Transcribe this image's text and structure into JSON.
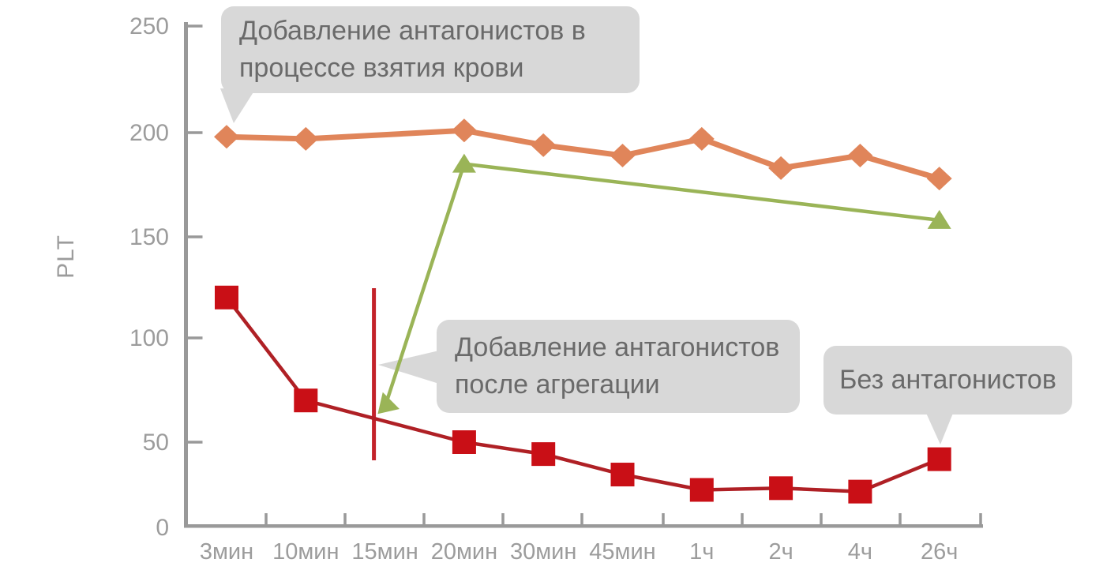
{
  "chart_data": {
    "type": "line",
    "title": "",
    "xlabel": "",
    "ylabel": "PLT",
    "categories": [
      "3мин",
      "10мин",
      "15мин",
      "20мин",
      "30мин",
      "45мин",
      "1ч",
      "2ч",
      "4ч",
      "26ч"
    ],
    "y_ticks": [
      0,
      50,
      100,
      150,
      200,
      250
    ],
    "ylim": [
      0,
      250
    ],
    "grid": false,
    "legend_position": "none",
    "series": [
      {
        "name": "Добавление антагонистов в процессе взятия крови",
        "marker": "diamond",
        "color": "#E0855A",
        "values": [
          198,
          197,
          null,
          201,
          194,
          189,
          197,
          183,
          189,
          178
        ]
      },
      {
        "name": "Добавление антагонистов после агрегации",
        "marker": "triangle",
        "color": "#9AB457",
        "values": [
          null,
          null,
          67,
          185,
          null,
          null,
          null,
          null,
          null,
          158
        ]
      },
      {
        "name": "Без антагонистов",
        "marker": "square",
        "color": "#C90F16",
        "line_color": "#AF2025",
        "values": [
          120,
          70,
          null,
          50,
          43,
          31,
          22,
          23,
          21,
          40
        ]
      }
    ],
    "annotation_line": {
      "category": "15мин",
      "color": "#C3222A"
    }
  },
  "callouts": [
    {
      "lines": [
        "Добавление антагонистов в",
        "процессе взятия крови"
      ]
    },
    {
      "lines": [
        "Добавление антагонистов",
        "после агрегации"
      ]
    },
    {
      "lines": [
        "Без антагонистов"
      ]
    }
  ],
  "colors": {
    "axis": "#999999",
    "tick_label": "#9c9c9c",
    "callout_bg": "#d8d8d8",
    "callout_text": "#6a6a6a",
    "background": "#ffffff"
  }
}
